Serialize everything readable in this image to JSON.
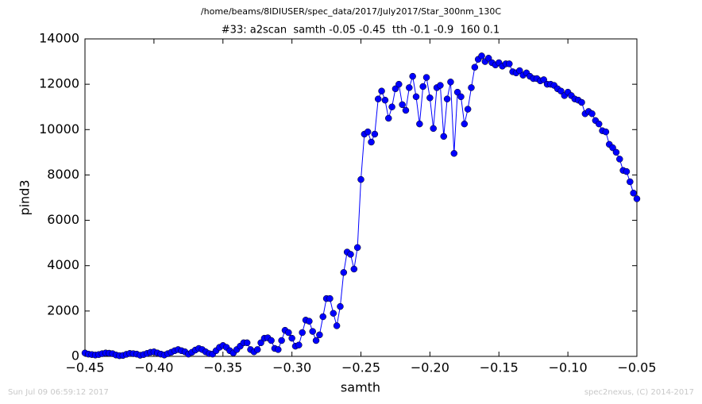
{
  "chart_data": {
    "type": "line",
    "suptitle": "/home/beams/8IDIUSER/spec_data/2017/July2017/Star_300nm_130C",
    "title": "#33: a2scan  samth -0.05 -0.45  tth -0.1 -0.9  160 0.1",
    "xlabel": "samth",
    "ylabel": "pind3",
    "footer_left": "Sun Jul 09 06:59:12 2017",
    "footer_right": "spec2nexus, (C) 2014-2017",
    "x": [
      -0.45,
      -0.4475,
      -0.445,
      -0.4425,
      -0.44,
      -0.4375,
      -0.435,
      -0.4325,
      -0.43,
      -0.4275,
      -0.425,
      -0.4225,
      -0.42,
      -0.4175,
      -0.415,
      -0.4125,
      -0.41,
      -0.4075,
      -0.405,
      -0.4025,
      -0.4,
      -0.3975,
      -0.395,
      -0.3925,
      -0.39,
      -0.3875,
      -0.385,
      -0.3825,
      -0.38,
      -0.3775,
      -0.375,
      -0.3725,
      -0.37,
      -0.3675,
      -0.365,
      -0.3625,
      -0.36,
      -0.3575,
      -0.355,
      -0.3525,
      -0.35,
      -0.3475,
      -0.345,
      -0.3425,
      -0.34,
      -0.3375,
      -0.335,
      -0.3325,
      -0.33,
      -0.3275,
      -0.325,
      -0.3225,
      -0.32,
      -0.3175,
      -0.315,
      -0.3125,
      -0.31,
      -0.3075,
      -0.305,
      -0.3025,
      -0.3,
      -0.2975,
      -0.295,
      -0.2925,
      -0.29,
      -0.2875,
      -0.285,
      -0.2825,
      -0.28,
      -0.2775,
      -0.275,
      -0.2725,
      -0.27,
      -0.2675,
      -0.265,
      -0.2625,
      -0.26,
      -0.2575,
      -0.255,
      -0.2525,
      -0.25,
      -0.2475,
      -0.245,
      -0.2425,
      -0.24,
      -0.2375,
      -0.235,
      -0.2325,
      -0.23,
      -0.2275,
      -0.225,
      -0.2225,
      -0.22,
      -0.2175,
      -0.215,
      -0.2125,
      -0.21,
      -0.2075,
      -0.205,
      -0.2025,
      -0.2,
      -0.1975,
      -0.195,
      -0.1925,
      -0.19,
      -0.1875,
      -0.185,
      -0.1825,
      -0.18,
      -0.1775,
      -0.175,
      -0.1725,
      -0.17,
      -0.1675,
      -0.165,
      -0.1625,
      -0.16,
      -0.1575,
      -0.155,
      -0.1525,
      -0.15,
      -0.1475,
      -0.145,
      -0.1425,
      -0.14,
      -0.1375,
      -0.135,
      -0.1325,
      -0.13,
      -0.1275,
      -0.125,
      -0.1225,
      -0.12,
      -0.1175,
      -0.115,
      -0.1125,
      -0.11,
      -0.1075,
      -0.105,
      -0.1025,
      -0.1,
      -0.0975,
      -0.095,
      -0.0925,
      -0.09,
      -0.0875,
      -0.085,
      -0.0825,
      -0.08,
      -0.0775,
      -0.075,
      -0.0725,
      -0.07,
      -0.0675,
      -0.065,
      -0.0625,
      -0.06,
      -0.0575,
      -0.055,
      -0.0525,
      -0.05
    ],
    "series": [
      {
        "color": "#0000ff",
        "values": [
          150,
          100,
          80,
          60,
          80,
          120,
          150,
          140,
          120,
          60,
          30,
          40,
          90,
          130,
          120,
          100,
          50,
          80,
          130,
          180,
          200,
          150,
          100,
          60,
          120,
          180,
          250,
          300,
          250,
          200,
          100,
          180,
          280,
          350,
          300,
          200,
          120,
          100,
          250,
          400,
          480,
          400,
          250,
          150,
          300,
          450,
          600,
          600,
          300,
          200,
          300,
          600,
          800,
          820,
          700,
          350,
          300,
          700,
          1150,
          1050,
          800,
          450,
          500,
          1050,
          1600,
          1550,
          1100,
          700,
          950,
          1750,
          2550,
          2550,
          1900,
          1350,
          2200,
          3700,
          4600,
          4500,
          3850,
          4800,
          7800,
          9800,
          9900,
          9450,
          9800,
          11350,
          11700,
          11300,
          10500,
          11000,
          11800,
          12000,
          11100,
          10850,
          11850,
          12350,
          11450,
          10250,
          11900,
          12300,
          11400,
          10050,
          11850,
          11950,
          9700,
          11350,
          12100,
          8950,
          11650,
          11450,
          10250,
          10900,
          11850,
          12750,
          13100,
          13250,
          13000,
          13150,
          12950,
          12850,
          12950,
          12800,
          12900,
          12900,
          12550,
          12500,
          12600,
          12400,
          12500,
          12350,
          12250,
          12250,
          12150,
          12200,
          12000,
          12000,
          11950,
          11800,
          11700,
          11500,
          11650,
          11500,
          11350,
          11300,
          11200,
          10700,
          10800,
          10700,
          10400,
          10250,
          9950,
          9900,
          9350,
          9200,
          9000,
          8700,
          8200,
          8150,
          7700,
          7200,
          6950
        ]
      }
    ],
    "xlim": [
      -0.45,
      -0.05
    ],
    "xticks": [
      {
        "value": -0.45,
        "label": "−0.45"
      },
      {
        "value": -0.4,
        "label": "−0.40"
      },
      {
        "value": -0.35,
        "label": "−0.35"
      },
      {
        "value": -0.3,
        "label": "−0.30"
      },
      {
        "value": -0.25,
        "label": "−0.25"
      },
      {
        "value": -0.2,
        "label": "−0.20"
      },
      {
        "value": -0.15,
        "label": "−0.15"
      },
      {
        "value": -0.1,
        "label": "−0.10"
      },
      {
        "value": -0.05,
        "label": "−0.05"
      }
    ],
    "ylim": [
      0,
      14000
    ],
    "yticks": [
      0,
      2000,
      4000,
      6000,
      8000,
      10000,
      12000,
      14000
    ]
  }
}
